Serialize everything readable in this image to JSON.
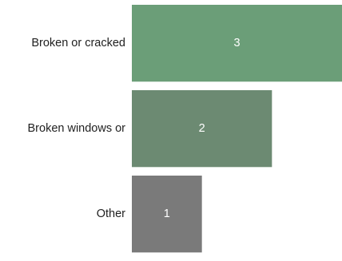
{
  "chart_data": {
    "type": "bar",
    "orientation": "horizontal",
    "categories": [
      "Broken or cracked",
      "Broken windows or",
      "Other"
    ],
    "values": [
      3,
      2,
      1
    ],
    "colors": [
      "#6b9e78",
      "#6c8a72",
      "#7a7a7a"
    ],
    "xlim": [
      0,
      3
    ],
    "grid": false,
    "legend": "none",
    "title": "",
    "xlabel": "",
    "ylabel": ""
  }
}
